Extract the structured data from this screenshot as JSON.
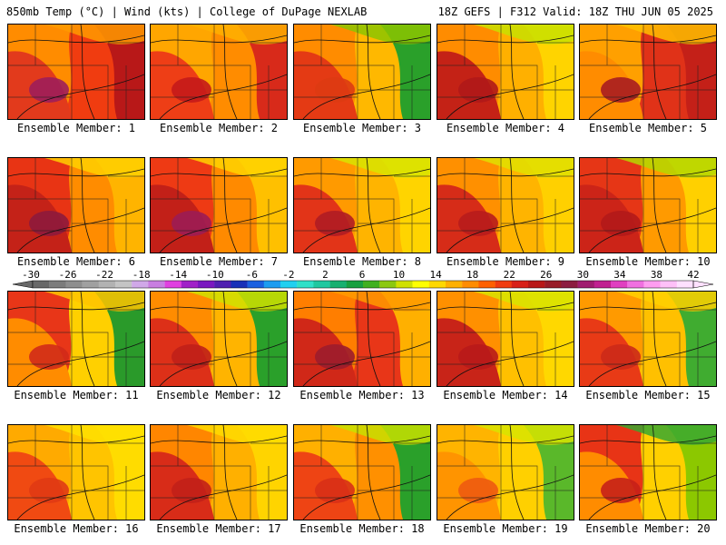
{
  "header": {
    "title": "850mb Temp (°C) | Wind (kts) | College of DuPage NEXLAB",
    "valid": "18Z GEFS | F312 Valid: 18Z THU JUN 05 2025"
  },
  "panels": [
    {
      "label": "Ensemble Member: 1",
      "fill": [
        "#ff8c00",
        "#e23a1c",
        "#f03c10",
        "#b81818",
        "#ff9a00"
      ],
      "hot": "#9e1e5a"
    },
    {
      "label": "Ensemble Member: 2",
      "fill": [
        "#ffa600",
        "#ee3e16",
        "#ff8c00",
        "#d82a1a",
        "#ffb000"
      ],
      "hot": "#c41a1a"
    },
    {
      "label": "Ensemble Member: 3",
      "fill": [
        "#ff8c00",
        "#e43a14",
        "#ffb800",
        "#2aa02a",
        "#8cc400"
      ],
      "hot": "#dd3b12"
    },
    {
      "label": "Ensemble Member: 4",
      "fill": [
        "#ff8c00",
        "#c42216",
        "#ffb000",
        "#ffd400",
        "#c8e000"
      ],
      "hot": "#b01818"
    },
    {
      "label": "Ensemble Member: 5",
      "fill": [
        "#ffa000",
        "#ff8c00",
        "#e03218",
        "#c42018",
        "#ffc000"
      ],
      "hot": "#a81c20"
    },
    {
      "label": "Ensemble Member: 6",
      "fill": [
        "#e83414",
        "#c42218",
        "#ff8c00",
        "#ffb400",
        "#ffd000"
      ],
      "hot": "#8e1a3c"
    },
    {
      "label": "Ensemble Member: 7",
      "fill": [
        "#ee3a14",
        "#c22018",
        "#ff8a00",
        "#ffc000",
        "#ffd400"
      ],
      "hot": "#9c1c54"
    },
    {
      "label": "Ensemble Member: 8",
      "fill": [
        "#ff9a00",
        "#e23418",
        "#ffb400",
        "#ffd400",
        "#d8e400"
      ],
      "hot": "#b01c24"
    },
    {
      "label": "Ensemble Member: 9",
      "fill": [
        "#ff9000",
        "#d62c18",
        "#ffb400",
        "#ffd000",
        "#e0e000"
      ],
      "hot": "#b81c1c"
    },
    {
      "label": "Ensemble Member: 10",
      "fill": [
        "#e63616",
        "#cc2418",
        "#ff9a00",
        "#ffd000",
        "#b4d800"
      ],
      "hot": "#b21a1a"
    },
    {
      "label": "Ensemble Member: 11",
      "fill": [
        "#e83618",
        "#ff8c00",
        "#ffd000",
        "#2a9a2a",
        "#ffc400"
      ],
      "hot": "#d22a18"
    },
    {
      "label": "Ensemble Member: 12",
      "fill": [
        "#ff8c00",
        "#dd3018",
        "#ffb400",
        "#2aa02a",
        "#d0e000"
      ],
      "hot": "#c02018"
    },
    {
      "label": "Ensemble Member: 13",
      "fill": [
        "#ff7e00",
        "#d02818",
        "#e83618",
        "#ffb000",
        "#ff9a00"
      ],
      "hot": "#9c1c2c"
    },
    {
      "label": "Ensemble Member: 14",
      "fill": [
        "#ff9000",
        "#c82418",
        "#ffc000",
        "#ffd800",
        "#d8e400"
      ],
      "hot": "#b81a1a"
    },
    {
      "label": "Ensemble Member: 15",
      "fill": [
        "#ff9a00",
        "#e83a16",
        "#ffc000",
        "#40ac30",
        "#ffd000"
      ],
      "hot": "#cc2a18"
    },
    {
      "label": "Ensemble Member: 16",
      "fill": [
        "#ffaa00",
        "#f04a12",
        "#ffc400",
        "#ffdc00",
        "#ffe000"
      ],
      "hot": "#e03a14"
    },
    {
      "label": "Ensemble Member: 17",
      "fill": [
        "#ff8600",
        "#d82c18",
        "#ffb000",
        "#ffd400",
        "#ffdc00"
      ],
      "hot": "#c22018"
    },
    {
      "label": "Ensemble Member: 18",
      "fill": [
        "#ffb000",
        "#ee4414",
        "#ff9000",
        "#2aa02a",
        "#c8e000"
      ],
      "hot": "#d83016"
    },
    {
      "label": "Ensemble Member: 19",
      "fill": [
        "#ffb400",
        "#ff9400",
        "#ffd000",
        "#5ab82a",
        "#d8e400"
      ],
      "hot": "#ee5a10"
    },
    {
      "label": "Ensemble Member: 20",
      "fill": [
        "#e83416",
        "#ff8c00",
        "#ffd000",
        "#8cc800",
        "#3aa830"
      ],
      "hot": "#c62018"
    }
  ],
  "colorbar": {
    "tick_labels": [
      "-30",
      "-26",
      "-22",
      "-18",
      "-14",
      "-10",
      "-6",
      "-2",
      "2",
      "6",
      "10",
      "14",
      "18",
      "22",
      "26",
      "30",
      "34",
      "38",
      "42"
    ],
    "colors": [
      "#686868",
      "#7c7c7c",
      "#8e8e8e",
      "#a0a0a0",
      "#b2b2b2",
      "#c4c4c4",
      "#d0a8e8",
      "#c87ee0",
      "#e040e0",
      "#a020c8",
      "#7a18c0",
      "#5020b0",
      "#1830b8",
      "#1a60e0",
      "#1c9cf0",
      "#20d0f0",
      "#30e0c8",
      "#20c8a0",
      "#18b070",
      "#18a040",
      "#40b020",
      "#8cc810",
      "#d0e000",
      "#ffff00",
      "#ffd800",
      "#ffb000",
      "#ff8c00",
      "#ff6000",
      "#f03c10",
      "#d82018",
      "#b81818",
      "#981c28",
      "#8c1c40",
      "#a01c70",
      "#c02090",
      "#e040c0",
      "#f070e0",
      "#ff9cf0",
      "#ffc0f8",
      "#ffe0ff"
    ]
  }
}
